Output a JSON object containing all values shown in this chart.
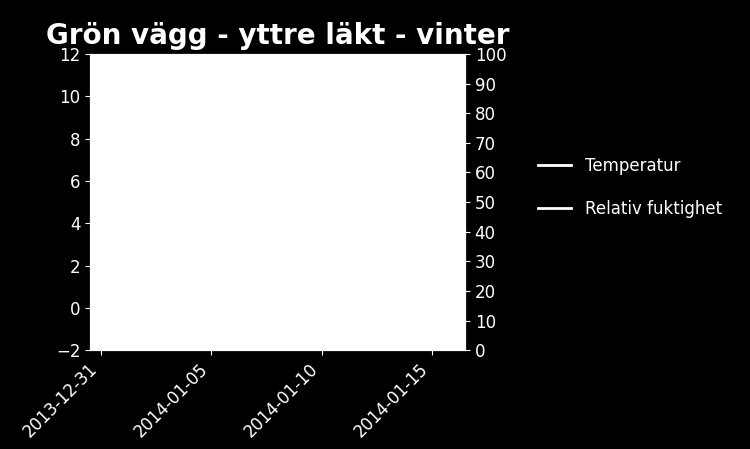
{
  "title": "Grön vägg - yttre läkt - vinter",
  "background_color": "#000000",
  "plot_bg_color": "#ffffff",
  "text_color": "#ffffff",
  "ylim_left": [
    -2,
    12
  ],
  "ylim_right": [
    0,
    100
  ],
  "yticks_left": [
    -2,
    0,
    2,
    4,
    6,
    8,
    10,
    12
  ],
  "yticks_right": [
    0,
    10,
    20,
    30,
    40,
    50,
    60,
    70,
    80,
    90,
    100
  ],
  "xtick_labels": [
    "2013-12-31",
    "2014-01-05",
    "2014-01-10",
    "2014-01-15"
  ],
  "legend_entries": [
    "Temperatur",
    "Relativ fuktighet"
  ],
  "legend_line_color": "#ffffff",
  "title_fontsize": 20,
  "tick_fontsize": 12,
  "legend_fontsize": 12
}
